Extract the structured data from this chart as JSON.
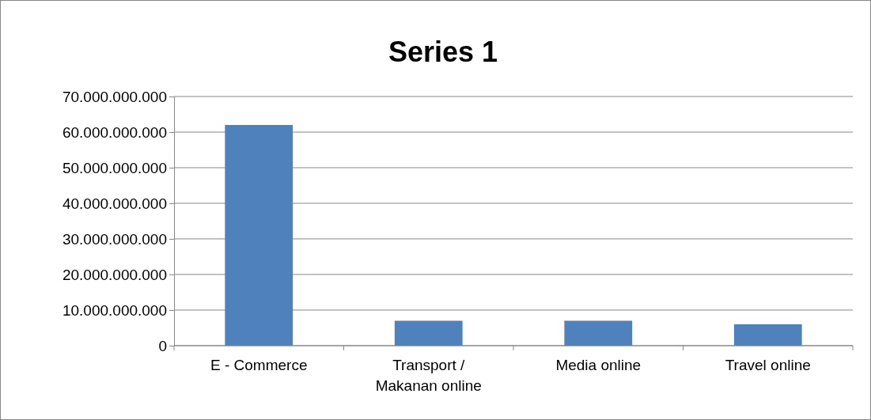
{
  "chart_data": {
    "type": "bar",
    "title": "Series 1",
    "categories": [
      "E - Commerce",
      "Transport / Makanan online",
      "Media online",
      "Travel online"
    ],
    "values": [
      62000000000,
      7000000000,
      7000000000,
      6000000000
    ],
    "color": "#4f81bd",
    "ylim": [
      0,
      70000000000
    ],
    "yticks": [
      {
        "value": 0,
        "label": "0"
      },
      {
        "value": 10000000000,
        "label": "10.000.000.000"
      },
      {
        "value": 20000000000,
        "label": "20.000.000.000"
      },
      {
        "value": 30000000000,
        "label": "30.000.000.000"
      },
      {
        "value": 40000000000,
        "label": "40.000.000.000"
      },
      {
        "value": 50000000000,
        "label": "50.000.000.000"
      },
      {
        "value": 60000000000,
        "label": "60.000.000.000"
      },
      {
        "value": 70000000000,
        "label": "70.000.000.000"
      }
    ],
    "grid": "y"
  }
}
